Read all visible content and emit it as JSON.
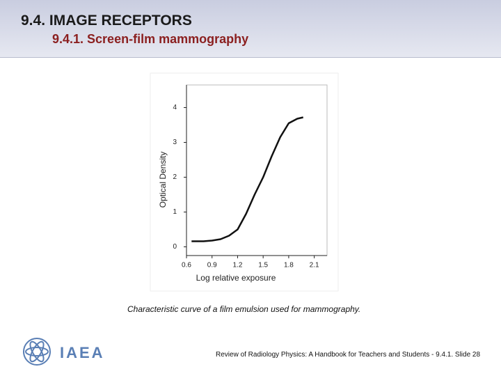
{
  "slide": {
    "title": "9.4. IMAGE RECEPTORS",
    "subtitle": "9.4.1. Screen-film mammography",
    "caption": "Characteristic curve of a film emulsion used for mammography.",
    "logo": "IAEA",
    "footer": "Review of Radiology Physics: A Handbook for Teachers and Students - 9.4.1. Slide 28"
  },
  "chart_data": {
    "type": "line",
    "xlabel": "Log relative exposure",
    "ylabel": "Optical Density",
    "x": [
      0.66,
      0.8,
      0.9,
      1.0,
      1.1,
      1.2,
      1.3,
      1.4,
      1.5,
      1.6,
      1.7,
      1.8,
      1.9,
      1.97
    ],
    "values": [
      0.16,
      0.16,
      0.18,
      0.22,
      0.32,
      0.5,
      0.95,
      1.5,
      2.0,
      2.6,
      3.15,
      3.55,
      3.68,
      3.72
    ],
    "color": "#111111",
    "xlim": [
      0.6,
      2.25
    ],
    "xticks": [
      0.6,
      0.9,
      1.2,
      1.5,
      1.8,
      2.1
    ],
    "ylim": [
      -0.25,
      4.65
    ],
    "yticks": [
      0,
      1,
      2,
      3,
      4
    ]
  }
}
